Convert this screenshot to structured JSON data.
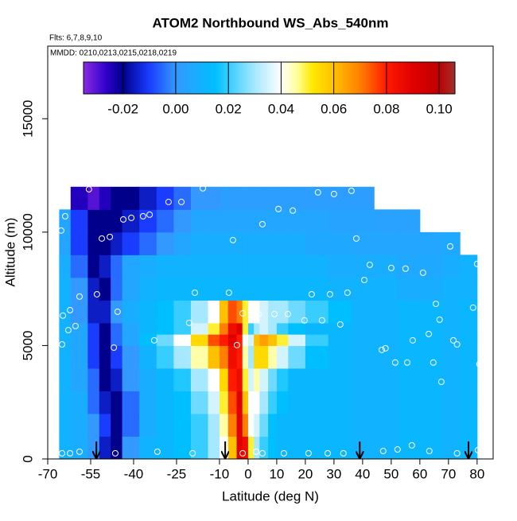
{
  "chart_data": {
    "type": "heatmap",
    "title": "ATOM2 Northbound WS_Abs_540nm",
    "subtitle": "Flts: 6,7,8,9,10",
    "annotation": "MMDD: 0210,0213,0215,0218,0219",
    "x_label": "Latitude (deg N)",
    "y_label": "Altitude (m)",
    "xlim": [
      -70,
      85.6
    ],
    "ylim": [
      0,
      18200
    ],
    "xticks": [
      -70,
      -55,
      -40,
      -25,
      -10,
      0,
      10,
      20,
      30,
      40,
      50,
      60,
      70,
      80
    ],
    "yticks": [
      0,
      5000,
      10000,
      15000
    ],
    "colorbar_lim": [
      -0.035,
      0.106
    ],
    "colorbar_ticks": [
      -0.02,
      {
        "value": 0,
        "label": "0.00"
      },
      0.02,
      0.04,
      0.06,
      0.08,
      {
        "value": 0.1,
        "label": "0.10"
      }
    ],
    "colorscale": [
      [
        -0.035,
        "#8a2be2"
      ],
      [
        -0.026,
        "#2a00c8"
      ],
      [
        -0.02,
        "#00008b"
      ],
      [
        -0.01,
        "#1a3cff"
      ],
      [
        0,
        "#3399ff"
      ],
      [
        0.015,
        "#00bfff"
      ],
      [
        0.03,
        "#a6e8ff"
      ],
      [
        0.04,
        "#ffffff"
      ],
      [
        0.046,
        "#ffff99"
      ],
      [
        0.052,
        "#ffe800"
      ],
      [
        0.06,
        "#ffc000"
      ],
      [
        0.07,
        "#ff8000"
      ],
      [
        0.08,
        "#ff1a00"
      ],
      [
        0.09,
        "#e00000"
      ],
      [
        0.1,
        "#c00000"
      ],
      [
        0.106,
        "#a03030"
      ]
    ],
    "x_edges": [
      -66,
      -62,
      -56,
      -52,
      -48,
      -44,
      -38,
      -32,
      -26,
      -20,
      -14,
      -10,
      -7,
      -4,
      -2,
      0,
      2,
      4,
      7,
      10,
      14,
      20,
      28,
      36,
      44,
      52,
      60,
      68,
      74,
      80
    ],
    "y_edges": [
      0,
      1000,
      2000,
      3000,
      4000,
      5000,
      5500,
      6000,
      7000,
      8000,
      9000,
      10000,
      11000,
      12000
    ],
    "z": [
      [
        0.01,
        0.008,
        0.0,
        -0.015,
        -0.02,
        0.0,
        0.01,
        0.012,
        0.015,
        0.02,
        0.03,
        0.04,
        0.06,
        0.09,
        0.085,
        0.05,
        0.03,
        0.02,
        0.015,
        0.012,
        0.012,
        0.012,
        0.012,
        0.01,
        0.01,
        0.012,
        0.012,
        0.01,
        0.012
      ],
      [
        0.01,
        0.008,
        0.0,
        -0.01,
        -0.02,
        -0.005,
        0.008,
        0.012,
        0.015,
        0.02,
        0.03,
        0.045,
        0.07,
        0.09,
        0.07,
        0.04,
        0.035,
        0.025,
        0.015,
        0.012,
        0.012,
        0.012,
        0.012,
        0.01,
        0.01,
        0.012,
        0.012,
        0.01,
        0.012
      ],
      [
        0.01,
        0.008,
        -0.005,
        -0.015,
        -0.02,
        -0.005,
        0.008,
        0.012,
        0.015,
        0.025,
        0.035,
        0.05,
        0.075,
        0.09,
        0.06,
        0.04,
        0.04,
        0.03,
        0.02,
        0.015,
        0.012,
        0.012,
        0.012,
        0.01,
        0.01,
        0.012,
        0.012,
        0.01,
        0.012
      ],
      [
        0.01,
        0.005,
        -0.005,
        -0.02,
        -0.015,
        0.0,
        0.008,
        0.012,
        0.018,
        0.03,
        0.04,
        0.055,
        0.08,
        0.085,
        0.05,
        0.035,
        0.045,
        0.035,
        0.025,
        0.018,
        0.012,
        0.012,
        0.012,
        0.01,
        0.01,
        0.012,
        0.012,
        0.01,
        0.012
      ],
      [
        0.01,
        0.005,
        -0.01,
        -0.02,
        -0.01,
        0.0,
        0.01,
        0.02,
        0.03,
        0.045,
        0.06,
        0.07,
        0.085,
        0.08,
        0.045,
        0.03,
        0.055,
        0.055,
        0.045,
        0.035,
        0.025,
        0.015,
        0.012,
        0.01,
        0.01,
        0.012,
        0.012,
        0.01,
        0.012
      ],
      [
        0.01,
        0.005,
        -0.01,
        -0.02,
        -0.005,
        0.005,
        0.015,
        0.025,
        0.04,
        0.055,
        0.075,
        0.08,
        0.09,
        0.08,
        0.04,
        0.035,
        0.06,
        0.065,
        0.06,
        0.05,
        0.035,
        0.02,
        0.012,
        0.01,
        0.01,
        0.012,
        0.012,
        0.01,
        0.012
      ],
      [
        0.01,
        0.005,
        -0.01,
        -0.02,
        -0.005,
        0.005,
        0.012,
        0.015,
        0.02,
        0.035,
        0.05,
        0.07,
        0.085,
        0.09,
        0.05,
        0.02,
        0.03,
        0.035,
        0.03,
        0.02,
        0.015,
        0.012,
        0.012,
        0.01,
        0.01,
        0.012,
        0.012,
        0.01,
        0.012
      ],
      [
        0.01,
        0.0,
        -0.015,
        -0.015,
        0.0,
        0.008,
        0.012,
        0.015,
        0.02,
        0.03,
        0.04,
        0.06,
        0.075,
        0.07,
        0.05,
        0.04,
        0.04,
        0.035,
        0.03,
        0.03,
        0.025,
        0.02,
        0.015,
        0.01,
        0.01,
        0.012,
        0.012,
        0.01,
        0.012
      ],
      [
        0.01,
        0.0,
        -0.015,
        -0.02,
        -0.005,
        0.005,
        0.01,
        0.012,
        0.012,
        0.012,
        0.012,
        0.012,
        0.012,
        0.012,
        0.012,
        0.012,
        0.012,
        0.012,
        0.012,
        0.012,
        0.012,
        0.012,
        0.01,
        0.01,
        0.01,
        0.008,
        0.008,
        0.01,
        0.01
      ],
      [
        0.008,
        -0.005,
        -0.02,
        -0.015,
        -0.005,
        0.005,
        0.008,
        0.01,
        0.01,
        0.01,
        0.01,
        0.01,
        0.01,
        0.01,
        0.01,
        0.01,
        0.01,
        0.01,
        0.01,
        0.01,
        0.01,
        0.01,
        0.008,
        0.008,
        0.008,
        0.006,
        0.006,
        0.008,
        0.01
      ],
      [
        0.005,
        -0.01,
        -0.02,
        -0.02,
        -0.015,
        -0.01,
        -0.005,
        0.0,
        0.005,
        0.008,
        0.008,
        0.008,
        0.008,
        0.008,
        0.008,
        0.008,
        0.008,
        0.008,
        0.008,
        0.008,
        0.008,
        0.006,
        0.006,
        0.005,
        0.005,
        0.005,
        0.005,
        0.006,
        null
      ],
      [
        0.005,
        -0.01,
        -0.02,
        -0.02,
        -0.02,
        -0.015,
        -0.01,
        -0.005,
        0.0,
        0.005,
        0.005,
        0.005,
        0.005,
        0.005,
        0.005,
        0.005,
        0.005,
        0.005,
        0.005,
        0.005,
        0.005,
        0.005,
        0.004,
        0.004,
        0.003,
        0.003,
        null,
        null,
        null
      ],
      [
        null,
        -0.025,
        -0.03,
        -0.025,
        -0.02,
        -0.02,
        -0.015,
        -0.01,
        -0.005,
        0.0,
        0.0,
        0.002,
        0.002,
        0.002,
        0.002,
        0.002,
        0.002,
        0.002,
        0.002,
        0.002,
        0.002,
        0.002,
        0.002,
        0.002,
        null,
        null,
        null,
        null,
        null
      ]
    ],
    "points": {
      "x": [
        -55.6,
        -63.9,
        -65.3,
        -51.1,
        -48.3,
        -43.6,
        -40.8,
        -36.7,
        -34.4,
        -27.8,
        -23.3,
        -15.8,
        -5.3,
        5,
        10.6,
        15.6,
        24.4,
        30,
        36.1,
        37.8,
        42.5,
        50,
        55,
        61.1,
        70.6,
        80,
        40.6,
        22.2,
        28.6,
        34.7,
        65.6,
        66.9,
        78.6,
        -52.8,
        -58.9,
        -62.2,
        -64.7,
        -62.8,
        -60.3,
        -65,
        -45.6,
        -46.9,
        -32.8,
        -18.6,
        -20.6,
        -6.7,
        -3.9,
        -1.9,
        3.6,
        9.2,
        13.9,
        19.7,
        25.8,
        32.2,
        46.7,
        48,
        51.4,
        55.6,
        57.5,
        63.1,
        64.7,
        67.5,
        71.7,
        73,
        80.8,
        -65,
        -62.2,
        -58.9,
        -46.4,
        -31.7,
        -19.4,
        -1.9,
        2.8,
        5,
        12.5,
        21.1,
        27.8,
        33.3,
        47.2,
        52.2,
        57.2,
        63.3,
        73,
        80.3
      ],
      "y": [
        11890,
        10700,
        10070,
        9720,
        9790,
        10560,
        10630,
        10700,
        10770,
        11330,
        11330,
        11930,
        9650,
        10350,
        11020,
        10950,
        11750,
        11680,
        11820,
        9720,
        8560,
        8420,
        8390,
        8210,
        9370,
        8600,
        7890,
        7260,
        7260,
        7330,
        6840,
        6140,
        6670,
        7260,
        7160,
        6560,
        6320,
        5680,
        5860,
        5050,
        6490,
        4910,
        5230,
        7330,
        6000,
        7330,
        5020,
        6420,
        6390,
        6390,
        6390,
        6110,
        6110,
        5930,
        4810,
        4880,
        4250,
        4250,
        5230,
        5510,
        4250,
        3400,
        5230,
        5050,
        4180,
        250,
        250,
        320,
        250,
        320,
        250,
        250,
        320,
        250,
        250,
        250,
        250,
        250,
        350,
        420,
        600,
        350,
        250,
        390
      ]
    },
    "arrows_x": [
      -53,
      -8,
      39,
      77
    ]
  }
}
